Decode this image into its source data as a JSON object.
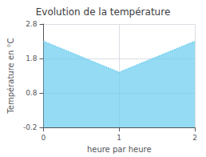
{
  "chart_data": {
    "type": "area",
    "title": "Evolution de la température",
    "xlabel": "heure par heure",
    "ylabel": "Température en °C",
    "x": [
      0,
      1,
      2
    ],
    "values": [
      2.3,
      1.4,
      2.3
    ],
    "color": "#66ccee",
    "line_style": "dotted",
    "xlim": [
      0,
      2
    ],
    "xticks": [
      0,
      1,
      2
    ],
    "ylim": [
      -0.2,
      2.8
    ],
    "yticks": [
      -0.2,
      0.8,
      1.8,
      2.8
    ],
    "grid": true
  }
}
